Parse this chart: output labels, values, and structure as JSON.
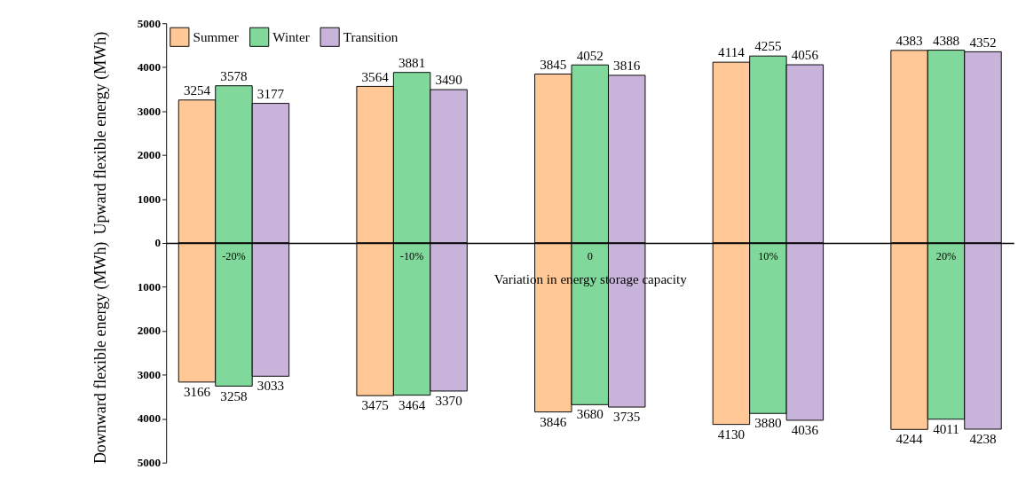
{
  "chart_data": [
    {
      "type": "bar",
      "categories": [
        null,
        null,
        null,
        null,
        null
      ],
      "ylabel": "Upward flexible energy (MWh)",
      "series": [
        {
          "name": "Summer",
          "color": "#ffc896",
          "values": [
            3254,
            3564,
            3845,
            4114,
            4383
          ]
        },
        {
          "name": "Winter",
          "color": "#80d99a",
          "values": [
            3578,
            3881,
            4052,
            4255,
            4388
          ]
        },
        {
          "name": "Transition",
          "color": "#c8b4da",
          "values": [
            3177,
            3490,
            3816,
            4056,
            4352
          ]
        }
      ],
      "data_labels": true,
      "ylim": [
        0,
        5000
      ],
      "yticks": [
        0,
        1000,
        2000,
        3000,
        4000,
        5000
      ],
      "tick_labels": "y",
      "legend": "top left"
    },
    {
      "type": "bar",
      "categories": [
        "-20%",
        "-10%",
        "0",
        "10%",
        "20%"
      ],
      "xlabel": "Variation in energy storage capacity",
      "ylabel": "Downward flexible energy (MWh)",
      "series": [
        {
          "color": "#ffc896",
          "values": [
            3166,
            3475,
            3846,
            4130,
            4244
          ]
        },
        {
          "color": "#80d99a",
          "values": [
            3258,
            3464,
            3680,
            3880,
            4011
          ]
        },
        {
          "color": "#c8b4da",
          "values": [
            3033,
            3370,
            3735,
            4036,
            4238
          ]
        }
      ],
      "data_labels": true,
      "ylim": [
        5000,
        0
      ],
      "yticks": [
        1000,
        2000,
        3000,
        4000,
        5000
      ]
    }
  ]
}
